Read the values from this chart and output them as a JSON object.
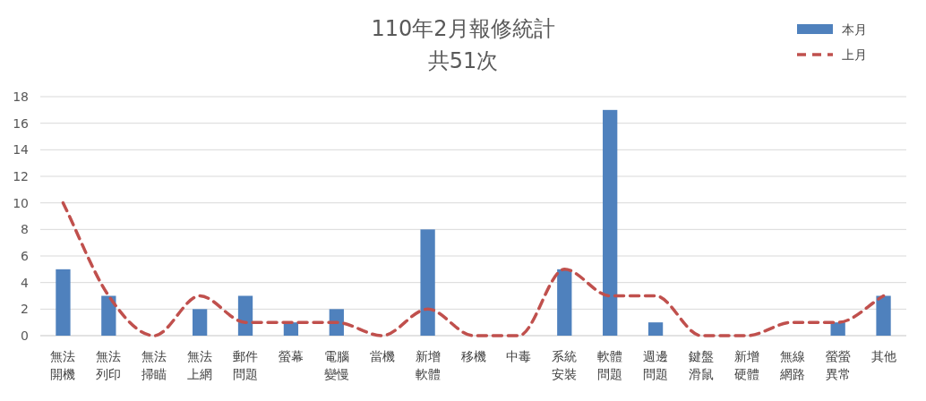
{
  "chart_data": {
    "type": "bar",
    "title": "110年2月報修統計",
    "subtitle": "共51次",
    "categories": [
      "無法開機",
      "無法列印",
      "無法掃瞄",
      "無法上網",
      "郵件問題",
      "螢幕",
      "電腦變慢",
      "當機",
      "新增軟體",
      "移機",
      "中毒",
      "系統安裝",
      "軟體問題",
      "週邊問題",
      "鍵盤滑鼠",
      "新增硬體",
      "無線網路",
      "螢螢異常",
      "其他"
    ],
    "series": [
      {
        "name": "本月",
        "color": "#4f81bd",
        "values": [
          5,
          3,
          0,
          2,
          3,
          1,
          2,
          0,
          8,
          0,
          0,
          5,
          17,
          1,
          0,
          0,
          0,
          1,
          3
        ]
      },
      {
        "name": "上月",
        "type": "line",
        "color": "#c0504d",
        "line_style": "dashed",
        "values": [
          10,
          3,
          0,
          3,
          1,
          1,
          1,
          0,
          2,
          0,
          0,
          5,
          3,
          3,
          0,
          0,
          1,
          1,
          3
        ]
      }
    ],
    "ylim": [
      0,
      18
    ],
    "yticks": [
      0,
      2,
      4,
      6,
      8,
      10,
      12,
      14,
      16,
      18
    ],
    "grid": "y",
    "legend": "top right"
  }
}
